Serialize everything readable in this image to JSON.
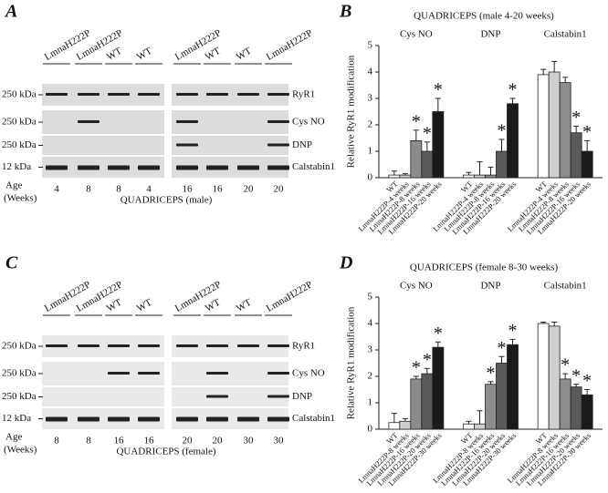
{
  "panels": [
    {
      "letter": "A",
      "lanes": [
        "LmnaH222P",
        "LmnaH222P",
        "WT",
        "WT",
        "LmnaH222P",
        "WT",
        "WT",
        "LmnaH222P"
      ],
      "bands": [
        "RyR1",
        "Cys NO",
        "DNP",
        "Calstabin1"
      ],
      "kda": [
        "250 kDa",
        "250 kDa",
        "250 kDa",
        "12 kDa"
      ],
      "age_label": [
        "Age",
        "(Weeks)"
      ],
      "ages": [
        4,
        8,
        8,
        4,
        16,
        16,
        20,
        20
      ],
      "caption": "QUADRICEPS (male)"
    },
    {
      "letter": "C",
      "lanes": [
        "LmnaH222P",
        "LmnaH222P",
        "WT",
        "WT",
        "LmnaH222P",
        "WT",
        "WT",
        "LmnaH222P"
      ],
      "bands": [
        "RyR1",
        "Cys NO",
        "DNP",
        "Calstabin1"
      ],
      "kda": [
        "250 kDa",
        "250 kDa",
        "250 kDa",
        "12 kDa"
      ],
      "age_label": [
        "Age",
        "(Weeks)"
      ],
      "ages": [
        8,
        8,
        16,
        16,
        20,
        20,
        30,
        30
      ],
      "caption": "QUADRICEPS (female)"
    }
  ],
  "chart_data": [
    {
      "type": "bar",
      "panel": "B",
      "title": "QUADRICEPS (male 4-20 weeks)",
      "y_label": "Relative RyR1 modification",
      "categories": [
        "Cys NO",
        "DNP",
        "Calstabin1"
      ],
      "series": [
        {
          "name": "WT",
          "color": "#ffffff",
          "values": [
            0.1,
            0.1,
            3.9
          ],
          "errors": [
            0.15,
            0.1,
            0.2
          ],
          "significance": [
            null,
            null,
            null
          ]
        },
        {
          "name": "LmnaH222P-4 weeks",
          "color": "#cfcfcf",
          "values": [
            0.1,
            0.1,
            4.0
          ],
          "errors": [
            0.05,
            0.5,
            0.4
          ],
          "significance": [
            null,
            null,
            null
          ]
        },
        {
          "name": "LmnaH222P-8 weeks",
          "color": "#8c8c8c",
          "values": [
            1.4,
            0.1,
            3.6
          ],
          "errors": [
            0.4,
            0.3,
            0.2
          ],
          "significance": [
            "*",
            null,
            null
          ]
        },
        {
          "name": "LmnaH222P-16 weeks",
          "color": "#5a5a5a",
          "values": [
            1.0,
            1.0,
            1.7
          ],
          "errors": [
            0.35,
            0.45,
            0.25
          ],
          "significance": [
            "*",
            "*",
            "*"
          ]
        },
        {
          "name": "LmnaH222P-20 weeks",
          "color": "#1a1a1a",
          "values": [
            2.5,
            2.8,
            1.0
          ],
          "errors": [
            0.5,
            0.2,
            0.4
          ],
          "significance": [
            "*",
            "*",
            "*"
          ]
        }
      ],
      "ylim": [
        0,
        5
      ],
      "yticks": [
        0,
        1,
        2,
        3,
        4,
        5
      ]
    },
    {
      "type": "bar",
      "panel": "D",
      "title": "QUADRICEPS (female 8-30 weeks)",
      "y_label": "Relative RyR1 modification",
      "categories": [
        "Cys NO",
        "DNP",
        "Calstabin1"
      ],
      "series": [
        {
          "name": "WT",
          "color": "#ffffff",
          "values": [
            0.25,
            0.2,
            4.0
          ],
          "errors": [
            0.35,
            0.1,
            0.05
          ],
          "significance": [
            null,
            null,
            null
          ]
        },
        {
          "name": "LmnaH222P-8 weeks",
          "color": "#cfcfcf",
          "values": [
            0.3,
            0.2,
            3.9
          ],
          "errors": [
            0.1,
            0.5,
            0.15
          ],
          "significance": [
            null,
            null,
            null
          ]
        },
        {
          "name": "LmnaH222P-16 weeks",
          "color": "#8c8c8c",
          "values": [
            1.9,
            1.7,
            1.9
          ],
          "errors": [
            0.1,
            0.1,
            0.2
          ],
          "significance": [
            "*",
            "*",
            "*"
          ]
        },
        {
          "name": "LmnaH222P-20 weeks",
          "color": "#5a5a5a",
          "values": [
            2.1,
            2.5,
            1.6
          ],
          "errors": [
            0.2,
            0.25,
            0.1
          ],
          "significance": [
            "*",
            "*",
            "*"
          ]
        },
        {
          "name": "LmnaH222P-30 weeks",
          "color": "#1a1a1a",
          "values": [
            3.1,
            3.2,
            1.3
          ],
          "errors": [
            0.2,
            0.2,
            0.2
          ],
          "significance": [
            "*",
            "*",
            "*"
          ]
        }
      ],
      "ylim": [
        0,
        5
      ],
      "yticks": [
        0,
        1,
        2,
        3,
        4,
        5
      ]
    }
  ]
}
